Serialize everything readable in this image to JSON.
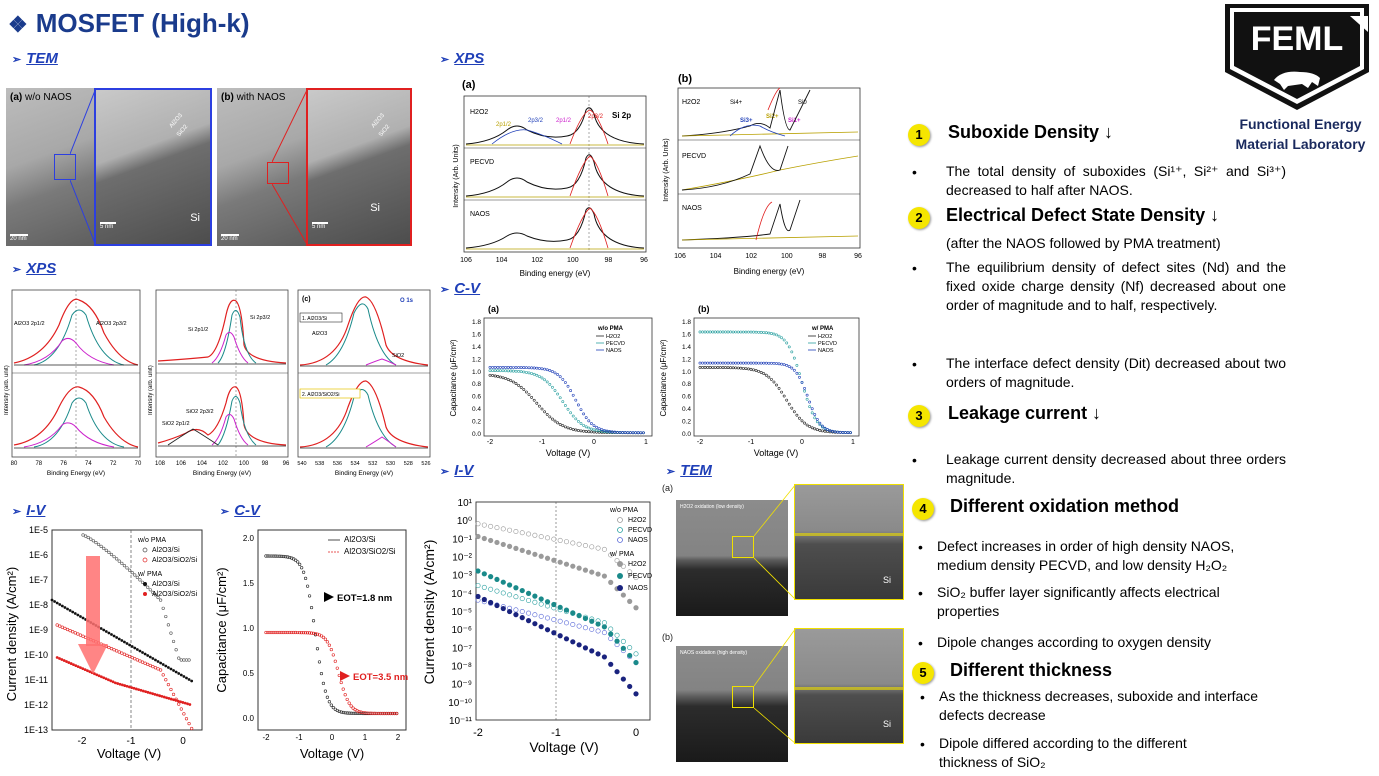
{
  "title": "MOSFET (High-k)",
  "lab": {
    "logo_text": "FEML",
    "name_line1": "Functional Energy",
    "name_line2": "Material Laboratory"
  },
  "sections": {
    "tem": "TEM",
    "xps_left": "XPS",
    "iv_left": "I-V",
    "cv_left": "C-V",
    "xps_mid": "XPS",
    "cv_mid": "C-V",
    "iv_mid": "I-V",
    "tem_mid": "TEM"
  },
  "tem_top": {
    "a_label": "(a)",
    "a_caption": "w/o NAOS",
    "b_label": "(b)",
    "b_caption": "with NAOS",
    "scale_20": "20 nm",
    "scale_5": "5 nm",
    "layer_al": "Al2O3",
    "layer_si": "SiO2",
    "si": "Si",
    "a_th1": "2.7 nm",
    "a_th2": "1.0 nm",
    "b_th1": "2.7 nm",
    "b_th2": "1.8 nm"
  },
  "xps_left": {
    "ylabel": "Intensity (arb. unit)",
    "xlabel": "Binding Energy (eV)",
    "p1_ticks": [
      "80",
      "78",
      "76",
      "74",
      "72",
      "70"
    ],
    "p2_ticks": [
      "108",
      "106",
      "104",
      "102",
      "100",
      "98",
      "96"
    ],
    "p3_ticks": [
      "540",
      "538",
      "536",
      "534",
      "532",
      "530",
      "528",
      "526"
    ],
    "p1_lbl1": "Al2O3 2p1/2",
    "p1_lbl2": "Al2O3 2p3/2",
    "p2_lbl1": "Si 2p1/2",
    "p2_lbl2": "Si 2p3/2",
    "p2_lbl3": "SiO2 2p3/2",
    "p2_lbl4": "SiO2 2p1/2",
    "p3_tag": "(c)",
    "p3_title": "O 1s",
    "p3_box1": "1. Al2O3/Si",
    "p3_box2": "2. Al2O3/SiO2/Si",
    "p3_lbl1": "Al2O3",
    "p3_lbl2": "SiO2"
  },
  "iv_left": {
    "ylabel": "Current density (A/cm²)",
    "xlabel": "Voltage (V)",
    "yticks": [
      "1E-5",
      "1E-6",
      "1E-7",
      "1E-8",
      "1E-9",
      "1E-10",
      "1E-11",
      "1E-12",
      "1E-13"
    ],
    "xticks": [
      "-2",
      "-1",
      "0"
    ],
    "legend": [
      "w/o PMA",
      "Al2O3/Si",
      "Al2O3/SiO2/Si",
      "w/ PMA",
      "Al2O3/Si",
      "Al2O3/SiO2/Si"
    ]
  },
  "cv_left": {
    "ylabel": "Capacitance (μF/cm²)",
    "xlabel": "Voltage (V)",
    "yticks": [
      "2.0",
      "1.5",
      "1.0",
      "0.5",
      "0.0"
    ],
    "xticks": [
      "-2",
      "-1",
      "0",
      "1",
      "2"
    ],
    "legend": [
      "Al2O3/Si",
      "Al2O3/SiO2/Si"
    ],
    "eot1": "EOT=1.8 nm",
    "eot2": "EOT=3.5 nm"
  },
  "xps_mid": {
    "a": "(a)",
    "b": "(b)",
    "ylabel": "Intensity (Arb. Units)",
    "xlabel": "Binding energy (eV)",
    "xticks": [
      "106",
      "104",
      "102",
      "100",
      "98",
      "96"
    ],
    "rows": [
      "H2O2",
      "PECVD",
      "NAOS"
    ],
    "si2p": "Si 2p",
    "peaks": [
      "2p1/2",
      "2p3/2",
      "2p1/2",
      "2p3/2"
    ],
    "b_peaks": [
      "Si4+",
      "Si3+",
      "Si2+",
      "Si1+",
      "Si0"
    ]
  },
  "cv_mid": {
    "a": "(a)",
    "b": "(b)",
    "ylabel": "Capacitance (μF/cm²)",
    "xlabel": "Voltage (V)",
    "yticks": [
      "1.8",
      "1.6",
      "1.4",
      "1.2",
      "1.0",
      "0.8",
      "0.6",
      "0.4",
      "0.2",
      "0.0"
    ],
    "xticks": [
      "-2",
      "-1",
      "0",
      "1"
    ],
    "legend_a_title": "w/o PMA",
    "legend_b_title": "w/ PMA",
    "legend": [
      "H2O2",
      "PECVD",
      "NAOS"
    ]
  },
  "iv_mid": {
    "ylabel": "Current density (A/cm²)",
    "xlabel": "Voltage (V)",
    "yticks": [
      "10¹",
      "10⁰",
      "10⁻¹",
      "10⁻²",
      "10⁻³",
      "10⁻⁴",
      "10⁻⁵",
      "10⁻⁶",
      "10⁻⁷",
      "10⁻⁸",
      "10⁻⁹",
      "10⁻¹⁰",
      "10⁻¹¹"
    ],
    "xticks": [
      "-2",
      "-1",
      "0"
    ],
    "legend": [
      "w/o PMA",
      "H2O2",
      "PECVD",
      "NAOS",
      "w/ PMA",
      "H2O2",
      "PECVD",
      "NAOS"
    ]
  },
  "tem_mid": {
    "a": "(a)",
    "b": "(b)",
    "a_caption": "H2O2 oxidation (low density)",
    "b_caption": "NAOS oxidation (high density)",
    "si": "Si"
  },
  "findings": [
    {
      "num": "1",
      "heading": "Suboxide Density ↓",
      "bullets": [
        "The total density of suboxides (Si¹⁺, Si²⁺ and Si³⁺) decreased to half after NAOS."
      ]
    },
    {
      "num": "2",
      "heading": "Electrical Defect State Density ↓",
      "note": "(after the NAOS followed by PMA treatment)",
      "bullets": [
        "The equilibrium density of defect sites (Nd) and the fixed oxide charge density (Nf) decreased about one order of magnitude and to half, respectively.",
        "The interface defect density (Dit) decreased about two orders of magnitude."
      ]
    },
    {
      "num": "3",
      "heading": "Leakage current ↓",
      "bullets": [
        "Leakage current density decreased about three orders magnitude."
      ]
    },
    {
      "num": "4",
      "heading": "Different oxidation method",
      "bullets": [
        "Defect increases in order of high density NAOS, medium density PECVD, and low density H₂O₂",
        "SiO₂ buffer layer significantly affects electrical properties",
        "Dipole changes according to oxygen density"
      ]
    },
    {
      "num": "5",
      "heading": "Different thickness",
      "bullets": [
        "As the thickness decreases, suboxide and interface defects decrease",
        "Dipole differed according to the different thickness of SiO₂"
      ]
    }
  ],
  "colors": {
    "title": "#1a3b8c",
    "section": "#1f3fb8",
    "badge": "#f5e600",
    "red": "#e02020",
    "teal": "#1a8a8a"
  }
}
